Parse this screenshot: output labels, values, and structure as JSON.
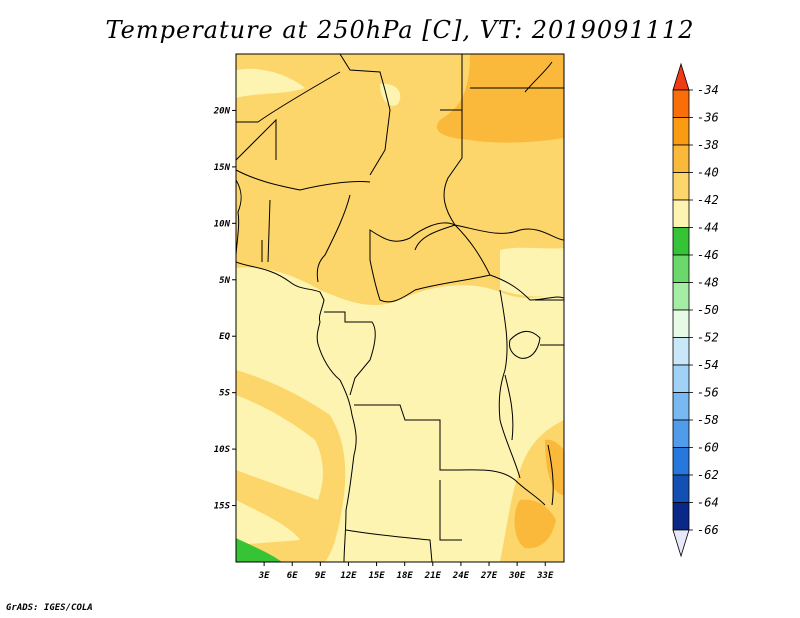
{
  "title": "Temperature at 250hPa [C], VT: 2019091112",
  "credit": "GrADS: IGES/COLA",
  "map": {
    "lon_range": [
      0,
      35
    ],
    "lat_range": [
      -20,
      25
    ],
    "x_ticks": [
      "3E",
      "6E",
      "9E",
      "12E",
      "15E",
      "18E",
      "21E",
      "24E",
      "27E",
      "30E",
      "33E"
    ],
    "y_ticks": [
      "20N",
      "15N",
      "10N",
      "5N",
      "EQ",
      "5S",
      "10S",
      "15S"
    ]
  },
  "colorbar": {
    "labels": [
      "-34",
      "-36",
      "-38",
      "-40",
      "-42",
      "-44",
      "-46",
      "-48",
      "-50",
      "-52",
      "-54",
      "-56",
      "-58",
      "-60",
      "-62",
      "-64",
      "-66"
    ],
    "colors": [
      "#f03c14",
      "#fa6e0a",
      "#fa9b14",
      "#fbb93c",
      "#fcd66a",
      "#fcf4b0",
      "#36c336",
      "#6ad86a",
      "#a5eda5",
      "#e6fae6",
      "#c8e8fa",
      "#a0d2f8",
      "#78b9f2",
      "#509bea",
      "#2877dc",
      "#1450b4",
      "#0a2888",
      "#08155c",
      "#e8e8fa"
    ],
    "top_color": "#f03c14",
    "bottom_color": "#e8e8fa"
  },
  "field_colors": {
    "t42": "#fcf4b0",
    "t40": "#fcd66a",
    "t38": "#fbb93c",
    "t46": "#36c336"
  }
}
